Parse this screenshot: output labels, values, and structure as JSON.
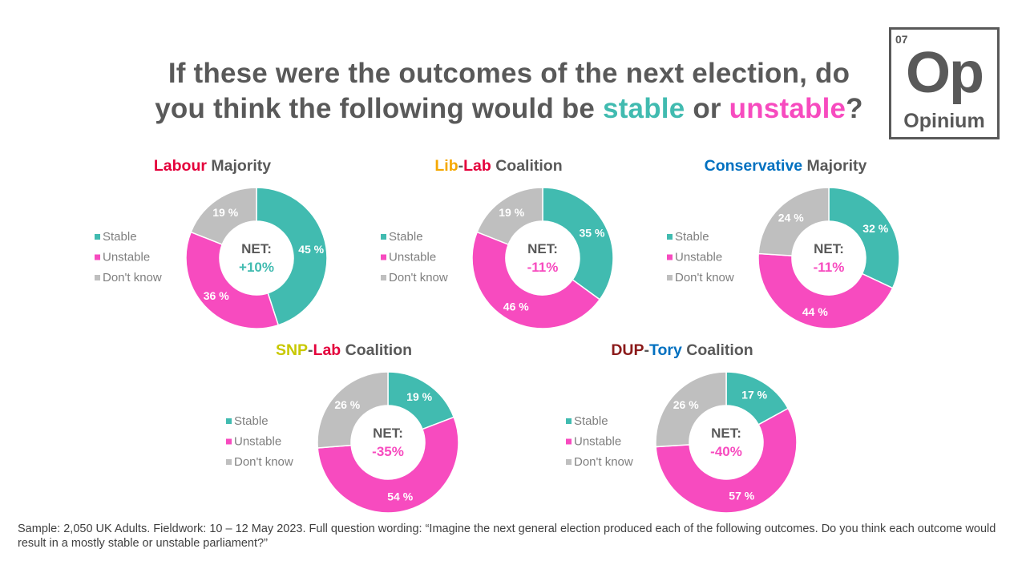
{
  "title": {
    "part1": "If these were the outcomes of the next election, do",
    "part2_prefix": "you think the following would be ",
    "stable": "stable",
    "or": " or ",
    "unstable": "unstable",
    "qmark": "?"
  },
  "logo": {
    "number": "07",
    "symbol": "Op",
    "name": "Opinium"
  },
  "colors": {
    "stable": "#41BBB0",
    "unstable": "#F74BBF",
    "dont_know": "#BFBFBF",
    "text": "#595959",
    "labour": "#E4003B",
    "libdem": "#F5A800",
    "conservative": "#0070C0",
    "snp": "#C8C800",
    "dup": "#8B1A1A"
  },
  "legend": [
    "Stable",
    "Unstable",
    "Don't know"
  ],
  "chart_data": [
    {
      "type": "pie",
      "title_parts": [
        {
          "text": "Labour",
          "color": "#E4003B"
        },
        {
          "text": " Majority",
          "color": "#595959"
        }
      ],
      "categories": [
        "Stable",
        "Unstable",
        "Don't know"
      ],
      "values": [
        45,
        36,
        19
      ],
      "labels": [
        "45 %",
        "36 %",
        "19 %"
      ],
      "net_label": "NET:",
      "net_value": "+10%",
      "net_color": "#41BBB0"
    },
    {
      "type": "pie",
      "title_parts": [
        {
          "text": "Lib",
          "color": "#F5A800"
        },
        {
          "text": "-",
          "color": "#595959"
        },
        {
          "text": "Lab",
          "color": "#E4003B"
        },
        {
          "text": " Coalition",
          "color": "#595959"
        }
      ],
      "categories": [
        "Stable",
        "Unstable",
        "Don't know"
      ],
      "values": [
        35,
        46,
        19
      ],
      "labels": [
        "35 %",
        "46 %",
        "19 %"
      ],
      "net_label": "NET:",
      "net_value": "-11%",
      "net_color": "#F74BBF"
    },
    {
      "type": "pie",
      "title_parts": [
        {
          "text": "Conservative",
          "color": "#0070C0"
        },
        {
          "text": " Majority",
          "color": "#595959"
        }
      ],
      "categories": [
        "Stable",
        "Unstable",
        "Don't know"
      ],
      "values": [
        32,
        44,
        24
      ],
      "labels": [
        "32 %",
        "44 %",
        "24 %"
      ],
      "net_label": "NET:",
      "net_value": "-11%",
      "net_color": "#F74BBF"
    },
    {
      "type": "pie",
      "title_parts": [
        {
          "text": "SNP",
          "color": "#C8C800"
        },
        {
          "text": "-",
          "color": "#595959"
        },
        {
          "text": "Lab",
          "color": "#E4003B"
        },
        {
          "text": " Coalition",
          "color": "#595959"
        }
      ],
      "categories": [
        "Stable",
        "Unstable",
        "Don't know"
      ],
      "values": [
        19,
        54,
        26
      ],
      "labels": [
        "19 %",
        "54 %",
        "26 %"
      ],
      "net_label": "NET:",
      "net_value": "-35%",
      "net_color": "#F74BBF"
    },
    {
      "type": "pie",
      "title_parts": [
        {
          "text": "DUP",
          "color": "#8B1A1A"
        },
        {
          "text": "-",
          "color": "#595959"
        },
        {
          "text": "Tory",
          "color": "#0070C0"
        },
        {
          "text": " Coalition",
          "color": "#595959"
        }
      ],
      "categories": [
        "Stable",
        "Unstable",
        "Don't know"
      ],
      "values": [
        17,
        57,
        26
      ],
      "labels": [
        "17 %",
        "57 %",
        "26 %"
      ],
      "net_label": "NET:",
      "net_value": "-40%",
      "net_color": "#F74BBF"
    }
  ],
  "footnote": "Sample: 2,050 UK Adults. Fieldwork: 10 – 12 May 2023. Full question wording: “Imagine the next general election produced each of the following outcomes. Do you think each outcome would result in a mostly stable or unstable parliament?”"
}
